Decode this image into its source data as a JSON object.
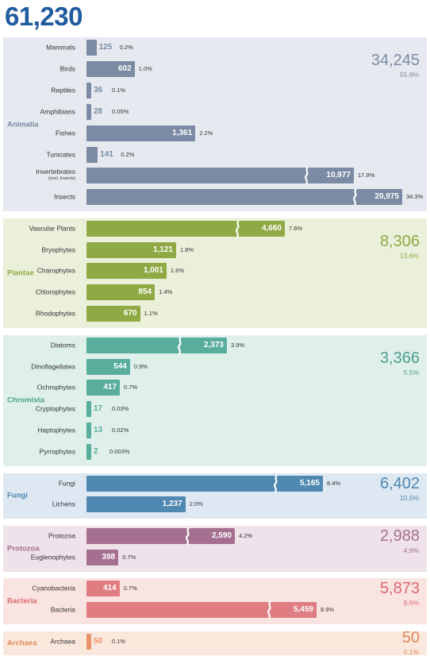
{
  "total": "61,230",
  "colors": {
    "total": "#1f5b9f"
  },
  "chart_data": {
    "type": "bar",
    "title": "61,230",
    "groups": [
      {
        "name": "Animalia",
        "total": "34,245",
        "pct": "55.9%",
        "color": "#7a8ba3",
        "bg": "#e6e9ef",
        "text": "#7a8ba3",
        "items": [
          {
            "label": "Mammals",
            "value": 125,
            "value_label": "125",
            "pct": "0.2%"
          },
          {
            "label": "Birds",
            "value": 602,
            "value_label": "602",
            "pct": "1.0%"
          },
          {
            "label": "Reptiles",
            "value": 36,
            "value_label": "36",
            "pct": "0.1%"
          },
          {
            "label": "Amphibians",
            "value": 28,
            "value_label": "28",
            "pct": "0.05%"
          },
          {
            "label": "Fishes",
            "value": 1361,
            "value_label": "1,361",
            "pct": "2.2%"
          },
          {
            "label": "Tunicates",
            "value": 141,
            "value_label": "141",
            "pct": "0.2%"
          },
          {
            "label": "Invertebrates",
            "sublabel": "(excl. Insects)",
            "value": 10977,
            "value_label": "10,977",
            "pct": "17.9%",
            "broken": true
          },
          {
            "label": "Insects",
            "value": 20975,
            "value_label": "20,975",
            "pct": "34.3%",
            "broken": true
          }
        ]
      },
      {
        "name": "Plantae",
        "total": "8,306",
        "pct": "13.6%",
        "color": "#8faa45",
        "bg": "#eaf0da",
        "text": "#8faa45",
        "items": [
          {
            "label": "Vascular Plants",
            "value": 4660,
            "value_label": "4,660",
            "pct": "7.6%",
            "broken": true
          },
          {
            "label": "Bryophytes",
            "value": 1121,
            "value_label": "1,121",
            "pct": "1.8%"
          },
          {
            "label": "Charophytes",
            "value": 1001,
            "value_label": "1,001",
            "pct": "1.6%"
          },
          {
            "label": "Chlorophytes",
            "value": 854,
            "value_label": "854",
            "pct": "1.4%"
          },
          {
            "label": "Rhodophytes",
            "value": 670,
            "value_label": "670",
            "pct": "1.1%"
          }
        ]
      },
      {
        "name": "Chromista",
        "total": "3,366",
        "pct": "5.5%",
        "color": "#58ad9c",
        "bg": "#dff0eb",
        "text": "#4a9e8d",
        "items": [
          {
            "label": "Diatoms",
            "value": 2373,
            "value_label": "2,373",
            "pct": "3.9%",
            "broken": true
          },
          {
            "label": "Dinoflagellates",
            "value": 544,
            "value_label": "544",
            "pct": "0.9%"
          },
          {
            "label": "Ochrophytes",
            "value": 417,
            "value_label": "417",
            "pct": "0.7%"
          },
          {
            "label": "Cryptophytes",
            "value": 17,
            "value_label": "17",
            "pct": "0.03%"
          },
          {
            "label": "Haptophytes",
            "value": 13,
            "value_label": "13",
            "pct": "0.02%"
          },
          {
            "label": "Pyrrophytes",
            "value": 2,
            "value_label": "2",
            "pct": "0.003%"
          }
        ]
      },
      {
        "name": "Fungi",
        "total": "6,402",
        "pct": "10.5%",
        "color": "#4f88b0",
        "bg": "#dde8f2",
        "text": "#4f88b0",
        "items": [
          {
            "label": "Fungi",
            "value": 5165,
            "value_label": "5,165",
            "pct": "8.4%",
            "broken": true
          },
          {
            "label": "Lichens",
            "value": 1237,
            "value_label": "1,237",
            "pct": "2.0%"
          }
        ]
      },
      {
        "name": "Protozoa",
        "total": "2,988",
        "pct": "4.9%",
        "color": "#a57090",
        "bg": "#efe2ea",
        "text": "#a57090",
        "items": [
          {
            "label": "Protozoa",
            "value": 2590,
            "value_label": "2,590",
            "pct": "4.2%",
            "broken": true
          },
          {
            "label": "Euglenophytes",
            "value": 398,
            "value_label": "398",
            "pct": "0.7%"
          }
        ]
      },
      {
        "name": "Bacteria",
        "total": "5,873",
        "pct": "9.6%",
        "color": "#df7d82",
        "bg": "#fae4e2",
        "text": "#d9676d",
        "items": [
          {
            "label": "Cyanobacteria",
            "value": 414,
            "value_label": "414",
            "pct": "0.7%"
          },
          {
            "label": "Bacteria",
            "value": 5459,
            "value_label": "5,459",
            "pct": "8.9%",
            "broken": true
          }
        ]
      },
      {
        "name": "Archaea",
        "total": "50",
        "pct": "0.1%",
        "color": "#e8946a",
        "bg": "#fbe8dc",
        "text": "#e0885c",
        "items": [
          {
            "label": "Archaea",
            "value": 50,
            "value_label": "50",
            "pct": "0.1%"
          }
        ]
      }
    ]
  }
}
